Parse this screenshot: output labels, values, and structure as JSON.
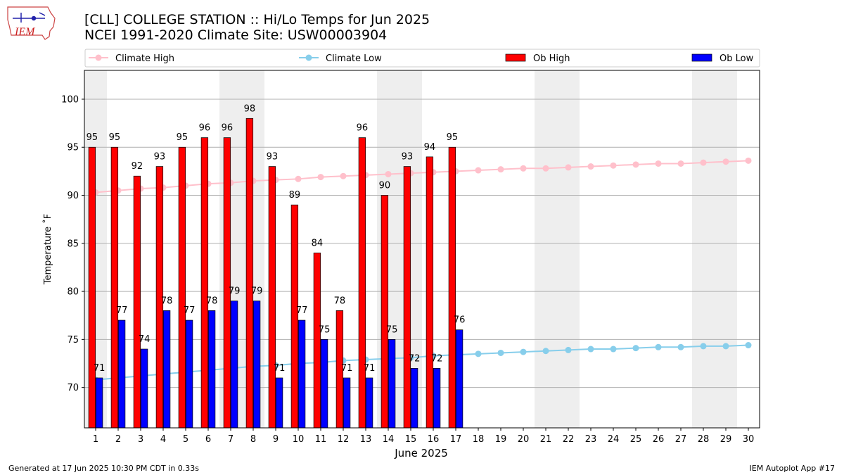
{
  "header": {
    "title": "[CLL] COLLEGE STATION :: Hi/Lo Temps for Jun 2025",
    "subtitle": "NCEI 1991-2020 Climate Site: USW00003904"
  },
  "logo": {
    "text": "IEM",
    "icon": "iem-iowa-logo"
  },
  "footer": {
    "generated": "Generated at 17 Jun 2025 10:30 PM CDT in 0.33s",
    "app": "IEM Autoplot App #17"
  },
  "chart_data": {
    "type": "bar",
    "xlabel": "June 2025",
    "ylabel": "Temperature $^\\circ$F",
    "ylim": [
      65.8,
      103.0
    ],
    "yticks": [
      70,
      75,
      80,
      85,
      90,
      95,
      100
    ],
    "grid": "horizontal",
    "legend_placement": "top",
    "weekend_shading": [
      [
        1,
        1
      ],
      [
        7,
        8
      ],
      [
        14,
        15
      ],
      [
        21,
        22
      ],
      [
        28,
        29
      ]
    ],
    "days": [
      1,
      2,
      3,
      4,
      5,
      6,
      7,
      8,
      9,
      10,
      11,
      12,
      13,
      14,
      15,
      16,
      17,
      18,
      19,
      20,
      21,
      22,
      23,
      24,
      25,
      26,
      27,
      28,
      29,
      30
    ],
    "series": [
      {
        "name": "Climate High",
        "kind": "line",
        "color": "#ffc0cb",
        "values": [
          90.3,
          90.5,
          90.7,
          90.8,
          91.0,
          91.2,
          91.3,
          91.5,
          91.6,
          91.7,
          91.9,
          92.0,
          92.1,
          92.2,
          92.3,
          92.4,
          92.5,
          92.6,
          92.7,
          92.8,
          92.8,
          92.9,
          93.0,
          93.1,
          93.2,
          93.3,
          93.3,
          93.4,
          93.5,
          93.6
        ]
      },
      {
        "name": "Climate Low",
        "kind": "line",
        "color": "#87ceeb",
        "values": [
          70.8,
          71.0,
          71.2,
          71.4,
          71.6,
          71.8,
          72.0,
          72.2,
          72.3,
          72.5,
          72.6,
          72.8,
          72.9,
          73.0,
          73.1,
          73.3,
          73.4,
          73.5,
          73.6,
          73.7,
          73.8,
          73.9,
          74.0,
          74.0,
          74.1,
          74.2,
          74.2,
          74.3,
          74.3,
          74.4
        ]
      },
      {
        "name": "Ob High",
        "kind": "bar",
        "color": "#ff0000",
        "values": [
          95,
          95,
          92,
          93,
          95,
          96,
          96,
          98,
          93,
          89,
          84,
          78,
          96,
          90,
          93,
          94,
          95
        ]
      },
      {
        "name": "Ob Low",
        "kind": "bar",
        "color": "#0000ff",
        "values": [
          71,
          77,
          74,
          78,
          77,
          78,
          79,
          79,
          71,
          77,
          75,
          71,
          71,
          75,
          72,
          72,
          76
        ]
      }
    ]
  }
}
